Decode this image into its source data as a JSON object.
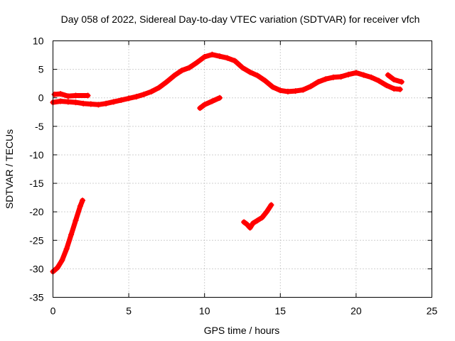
{
  "chart_data": {
    "type": "scatter",
    "title": "Day 058 of 2022, Sidereal Day-to-day VTEC variation (SDTVAR) for receiver vfch",
    "xlabel": "GPS time / hours",
    "ylabel": "SDTVAR / TECUs",
    "xlim": [
      0,
      25
    ],
    "ylim": [
      -35,
      10
    ],
    "xticks": [
      0,
      5,
      10,
      15,
      20,
      25
    ],
    "yticks": [
      10,
      5,
      0,
      -5,
      -10,
      -15,
      -20,
      -25,
      -30,
      -35
    ],
    "grid": true,
    "color": "#ff0000",
    "series": [
      {
        "name": "main-arc",
        "points": [
          [
            0.0,
            -0.8
          ],
          [
            0.5,
            -0.6
          ],
          [
            1.0,
            -0.7
          ],
          [
            1.5,
            -0.8
          ],
          [
            2.0,
            -1.0
          ],
          [
            2.5,
            -1.1
          ],
          [
            3.0,
            -1.2
          ],
          [
            3.5,
            -1.0
          ],
          [
            4.0,
            -0.7
          ],
          [
            4.5,
            -0.4
          ],
          [
            5.0,
            -0.1
          ],
          [
            5.5,
            0.2
          ],
          [
            6.0,
            0.6
          ],
          [
            6.5,
            1.1
          ],
          [
            7.0,
            1.8
          ],
          [
            7.5,
            2.8
          ],
          [
            8.0,
            3.9
          ],
          [
            8.5,
            4.8
          ],
          [
            9.0,
            5.3
          ],
          [
            9.5,
            6.2
          ],
          [
            10.0,
            7.2
          ],
          [
            10.5,
            7.6
          ],
          [
            11.0,
            7.3
          ],
          [
            11.5,
            7.0
          ],
          [
            12.0,
            6.5
          ],
          [
            12.5,
            5.3
          ],
          [
            13.0,
            4.5
          ],
          [
            13.5,
            3.9
          ],
          [
            14.0,
            3.0
          ],
          [
            14.5,
            1.9
          ],
          [
            15.0,
            1.3
          ],
          [
            15.5,
            1.1
          ],
          [
            16.0,
            1.2
          ],
          [
            16.5,
            1.4
          ],
          [
            17.0,
            2.0
          ],
          [
            17.5,
            2.8
          ],
          [
            18.0,
            3.3
          ],
          [
            18.5,
            3.6
          ],
          [
            19.0,
            3.7
          ],
          [
            19.5,
            4.1
          ],
          [
            20.0,
            4.4
          ],
          [
            20.5,
            4.0
          ],
          [
            21.0,
            3.6
          ],
          [
            21.5,
            3.0
          ],
          [
            22.0,
            2.2
          ],
          [
            22.5,
            1.6
          ],
          [
            22.9,
            1.5
          ]
        ]
      },
      {
        "name": "early-short-arc",
        "points": [
          [
            0.1,
            0.6
          ],
          [
            0.5,
            0.7
          ],
          [
            1.0,
            0.3
          ],
          [
            1.5,
            0.4
          ],
          [
            2.3,
            0.4
          ]
        ]
      },
      {
        "name": "late-short-arc",
        "points": [
          [
            22.1,
            4.0
          ],
          [
            22.5,
            3.2
          ],
          [
            23.0,
            2.8
          ]
        ]
      },
      {
        "name": "dip-arc",
        "points": [
          [
            9.7,
            -1.8
          ],
          [
            10.0,
            -1.2
          ],
          [
            10.5,
            -0.6
          ],
          [
            11.0,
            0.0
          ]
        ]
      },
      {
        "name": "steep-low-arc",
        "points": [
          [
            0.0,
            -30.5
          ],
          [
            0.3,
            -29.8
          ],
          [
            0.6,
            -28.5
          ],
          [
            0.9,
            -26.5
          ],
          [
            1.2,
            -24.0
          ],
          [
            1.5,
            -21.5
          ],
          [
            1.8,
            -19.0
          ],
          [
            1.95,
            -18.0
          ]
        ]
      },
      {
        "name": "mid-low-arc",
        "points": [
          [
            12.6,
            -21.8
          ],
          [
            12.8,
            -22.2
          ],
          [
            13.0,
            -22.8
          ],
          [
            13.2,
            -22.0
          ],
          [
            13.5,
            -21.5
          ],
          [
            13.8,
            -21.0
          ],
          [
            14.1,
            -20.0
          ],
          [
            14.4,
            -18.8
          ]
        ]
      }
    ]
  }
}
